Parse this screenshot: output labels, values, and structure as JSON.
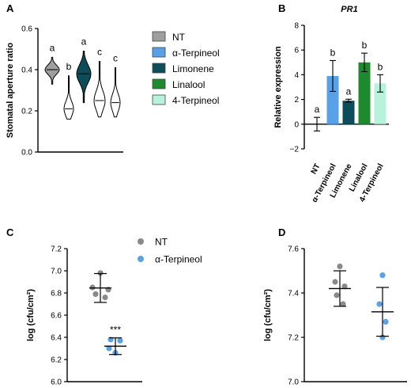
{
  "chart_data": [
    {
      "panel": "A",
      "type": "violin",
      "ylabel": "Stomatal aperture ratio",
      "ylim": [
        0.0,
        0.6
      ],
      "yticks": [
        "0.0",
        "0.2",
        "0.4",
        "0.6"
      ],
      "series": [
        {
          "name": "NT",
          "color": "#9e9e9e",
          "median": 0.4,
          "range": [
            0.33,
            0.46
          ],
          "label": "a"
        },
        {
          "name": "α-Terpineol",
          "color": "#ffffff",
          "median": 0.21,
          "range": [
            0.16,
            0.37
          ],
          "label": "b"
        },
        {
          "name": "Limonene",
          "color": "#0d4d5a",
          "median": 0.38,
          "range": [
            0.24,
            0.49
          ],
          "label": "a"
        },
        {
          "name": "Linalool",
          "color": "#ffffff",
          "median": 0.25,
          "range": [
            0.17,
            0.44
          ],
          "label": "c"
        },
        {
          "name": "4-Terpineol",
          "color": "#ffffff",
          "median": 0.24,
          "range": [
            0.17,
            0.41
          ],
          "label": "c"
        }
      ],
      "legend": [
        {
          "name": "NT",
          "color": "#9e9e9e"
        },
        {
          "name": "α-Terpineol",
          "color": "#58a0e8"
        },
        {
          "name": "Limonene",
          "color": "#0d4d5a"
        },
        {
          "name": "Linalool",
          "color": "#1e8a2e"
        },
        {
          "name": "4-Terpineol",
          "color": "#b7f2dc"
        }
      ]
    },
    {
      "panel": "B",
      "type": "bar",
      "title": "PR1",
      "ylabel": "Relative expression",
      "ylim": [
        -2,
        8
      ],
      "yticks": [
        "−2",
        "0",
        "2",
        "4",
        "6",
        "8"
      ],
      "categories": [
        "NT",
        "α-Terpineol",
        "Limonene",
        "Linalool",
        "4-Terpineol"
      ],
      "values": [
        0.0,
        3.9,
        1.9,
        5.0,
        3.3
      ],
      "errors": [
        0.55,
        1.25,
        0.12,
        0.75,
        0.7
      ],
      "colors": [
        "#9e9e9e",
        "#58a0e8",
        "#0d4d5a",
        "#1e8a2e",
        "#b7f2dc"
      ],
      "labels": [
        "a",
        "b",
        "a",
        "b",
        "b"
      ]
    },
    {
      "panel": "C",
      "type": "scatter",
      "ylabel": "log (cfu/cm²)",
      "ylim": [
        6.0,
        7.2
      ],
      "yticks": [
        "6.0",
        "6.2",
        "6.4",
        "6.6",
        "6.8",
        "7.0",
        "7.2"
      ],
      "series": [
        {
          "name": "NT",
          "color": "#8a8a8a",
          "points": [
            6.98,
            6.85,
            6.83,
            6.79,
            6.76
          ],
          "mean": 6.845,
          "sd": 0.13
        },
        {
          "name": "α-Terpineol",
          "color": "#5aa2e6",
          "points": [
            6.38,
            6.37,
            6.3,
            6.26
          ],
          "mean": 6.32,
          "sd": 0.075,
          "annotation": "***"
        }
      ]
    },
    {
      "panel": "D",
      "type": "scatter",
      "ylabel": "log (cfu/cm²)",
      "ylim": [
        7.0,
        7.6
      ],
      "yticks": [
        "7.0",
        "7.2",
        "7.4",
        "7.6"
      ],
      "series": [
        {
          "name": "NT",
          "color": "#8a8a8a",
          "points": [
            7.52,
            7.45,
            7.43,
            7.39,
            7.35
          ],
          "mean": 7.42,
          "sd": 0.08
        },
        {
          "name": "α-Terpineol",
          "color": "#5aa2e6",
          "points": [
            7.48,
            7.35,
            7.27,
            7.2
          ],
          "mean": 7.315,
          "sd": 0.11
        }
      ]
    }
  ]
}
